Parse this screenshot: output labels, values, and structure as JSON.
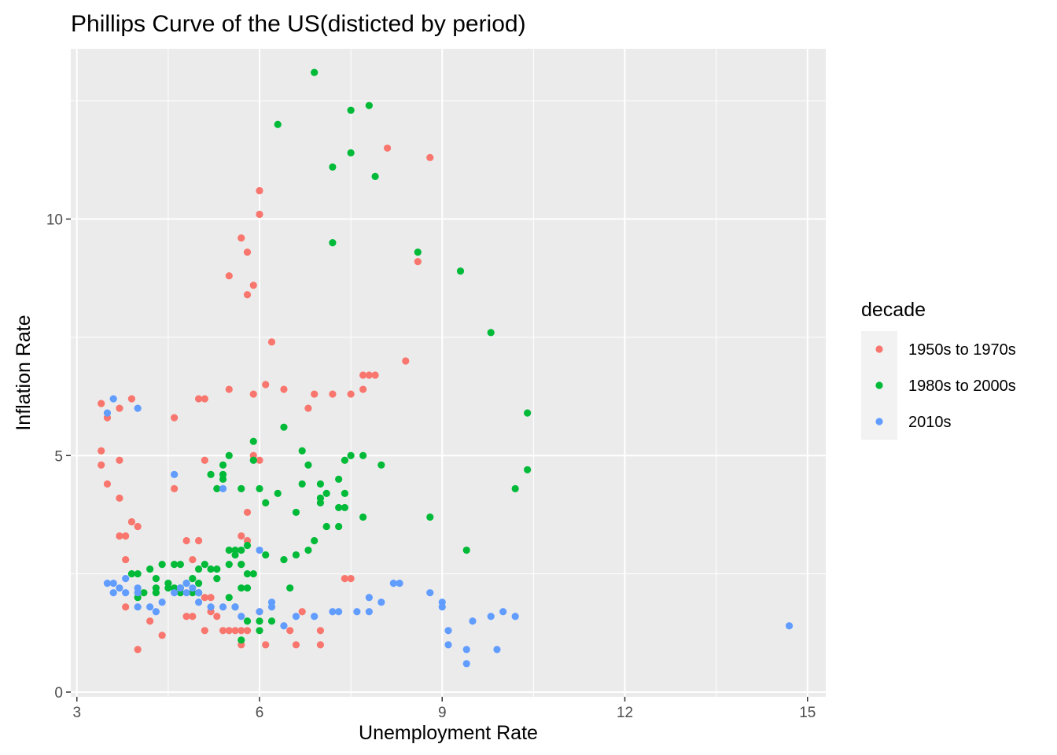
{
  "chart_data": {
    "type": "scatter",
    "title": "Phillips Curve of the US(disticted by period)",
    "xlabel": "Unemployment Rate",
    "ylabel": "Inflation Rate",
    "xlim": [
      2.9,
      15.3
    ],
    "ylim": [
      -0.1,
      13.6
    ],
    "x_ticks": [
      3,
      6,
      9,
      12,
      15
    ],
    "x_tick_labels": [
      "3",
      "6",
      "9",
      "12",
      "15"
    ],
    "y_ticks": [
      0,
      5,
      10
    ],
    "y_tick_labels": [
      "0",
      "5",
      "10"
    ],
    "grid": true,
    "legend": {
      "title": "decade",
      "position": "right"
    },
    "series": [
      {
        "name": "1950s to 1970s",
        "color": "#F8766D",
        "points": [
          [
            3.4,
            6.1
          ],
          [
            3.5,
            5.8
          ],
          [
            3.7,
            6.0
          ],
          [
            3.4,
            5.1
          ],
          [
            3.4,
            4.8
          ],
          [
            3.5,
            4.4
          ],
          [
            3.7,
            4.9
          ],
          [
            3.7,
            4.1
          ],
          [
            3.7,
            3.3
          ],
          [
            3.8,
            3.3
          ],
          [
            3.9,
            3.6
          ],
          [
            4.0,
            3.5
          ],
          [
            3.8,
            2.8
          ],
          [
            3.8,
            1.8
          ],
          [
            4.0,
            0.9
          ],
          [
            4.2,
            1.5
          ],
          [
            4.4,
            1.2
          ],
          [
            3.9,
            6.2
          ],
          [
            4.6,
            5.8
          ],
          [
            4.6,
            4.3
          ],
          [
            4.8,
            3.2
          ],
          [
            5.0,
            3.2
          ],
          [
            4.9,
            2.8
          ],
          [
            4.8,
            1.6
          ],
          [
            4.9,
            1.6
          ],
          [
            5.0,
            6.2
          ],
          [
            5.1,
            6.2
          ],
          [
            5.1,
            4.9
          ],
          [
            5.1,
            2.0
          ],
          [
            5.2,
            2.0
          ],
          [
            5.1,
            1.3
          ],
          [
            5.2,
            1.7
          ],
          [
            5.3,
            1.6
          ],
          [
            5.4,
            1.3
          ],
          [
            5.5,
            1.3
          ],
          [
            5.6,
            1.3
          ],
          [
            5.7,
            1.3
          ],
          [
            5.8,
            1.3
          ],
          [
            5.7,
            1.0
          ],
          [
            5.5,
            6.4
          ],
          [
            5.5,
            8.8
          ],
          [
            5.7,
            9.6
          ],
          [
            5.8,
            9.3
          ],
          [
            5.8,
            8.4
          ],
          [
            5.9,
            8.6
          ],
          [
            6.0,
            10.1
          ],
          [
            6.0,
            10.6
          ],
          [
            5.9,
            6.3
          ],
          [
            6.1,
            6.5
          ],
          [
            6.2,
            7.4
          ],
          [
            5.9,
            5.0
          ],
          [
            6.0,
            4.9
          ],
          [
            5.8,
            3.8
          ],
          [
            5.7,
            3.3
          ],
          [
            5.8,
            3.2
          ],
          [
            5.7,
            2.7
          ],
          [
            6.0,
            1.7
          ],
          [
            6.1,
            1.0
          ],
          [
            6.4,
            6.4
          ],
          [
            6.5,
            1.3
          ],
          [
            6.6,
            1.0
          ],
          [
            6.7,
            1.7
          ],
          [
            6.8,
            6.0
          ],
          [
            6.9,
            6.3
          ],
          [
            7.0,
            1.3
          ],
          [
            7.0,
            1.0
          ],
          [
            7.2,
            6.3
          ],
          [
            7.4,
            2.4
          ],
          [
            7.5,
            2.4
          ],
          [
            7.5,
            6.3
          ],
          [
            7.7,
            6.4
          ],
          [
            7.7,
            6.7
          ],
          [
            7.8,
            6.7
          ],
          [
            7.9,
            6.7
          ],
          [
            8.1,
            11.5
          ],
          [
            8.4,
            7.0
          ],
          [
            8.6,
            9.1
          ],
          [
            8.8,
            11.3
          ]
        ]
      },
      {
        "name": "1980s to 2000s",
        "color": "#00BA38",
        "points": [
          [
            3.9,
            2.5
          ],
          [
            4.0,
            2.5
          ],
          [
            4.0,
            2.0
          ],
          [
            4.1,
            2.1
          ],
          [
            4.2,
            2.6
          ],
          [
            4.3,
            2.4
          ],
          [
            4.3,
            2.1
          ],
          [
            4.3,
            2.2
          ],
          [
            4.4,
            2.7
          ],
          [
            4.5,
            2.3
          ],
          [
            4.5,
            2.2
          ],
          [
            4.6,
            2.2
          ],
          [
            4.6,
            2.7
          ],
          [
            4.7,
            2.7
          ],
          [
            4.7,
            2.2
          ],
          [
            4.7,
            2.1
          ],
          [
            4.8,
            2.3
          ],
          [
            4.9,
            2.4
          ],
          [
            4.9,
            2.1
          ],
          [
            5.0,
            2.6
          ],
          [
            5.0,
            2.3
          ],
          [
            5.0,
            2.1
          ],
          [
            5.1,
            2.7
          ],
          [
            5.2,
            2.6
          ],
          [
            5.3,
            2.6
          ],
          [
            5.3,
            2.4
          ],
          [
            5.2,
            4.6
          ],
          [
            5.3,
            4.3
          ],
          [
            5.4,
            4.8
          ],
          [
            5.4,
            4.6
          ],
          [
            5.4,
            4.5
          ],
          [
            5.5,
            5.0
          ],
          [
            5.5,
            3.0
          ],
          [
            5.5,
            2.7
          ],
          [
            5.5,
            2.0
          ],
          [
            5.6,
            3.0
          ],
          [
            5.6,
            2.9
          ],
          [
            5.6,
            1.8
          ],
          [
            5.7,
            3.0
          ],
          [
            5.7,
            2.7
          ],
          [
            5.7,
            2.2
          ],
          [
            5.7,
            4.3
          ],
          [
            5.7,
            1.1
          ],
          [
            5.8,
            3.1
          ],
          [
            5.8,
            2.5
          ],
          [
            5.8,
            2.2
          ],
          [
            5.8,
            1.5
          ],
          [
            5.9,
            2.5
          ],
          [
            5.9,
            5.3
          ],
          [
            5.9,
            4.9
          ],
          [
            6.0,
            4.3
          ],
          [
            6.0,
            1.3
          ],
          [
            6.0,
            1.5
          ],
          [
            6.1,
            4.0
          ],
          [
            6.1,
            2.9
          ],
          [
            6.2,
            1.5
          ],
          [
            6.3,
            12.0
          ],
          [
            6.3,
            4.2
          ],
          [
            6.4,
            5.6
          ],
          [
            6.4,
            2.8
          ],
          [
            6.5,
            2.2
          ],
          [
            6.6,
            3.8
          ],
          [
            6.6,
            2.9
          ],
          [
            6.7,
            5.1
          ],
          [
            6.7,
            4.4
          ],
          [
            6.8,
            4.8
          ],
          [
            6.8,
            3.0
          ],
          [
            6.9,
            3.2
          ],
          [
            7.0,
            4.4
          ],
          [
            7.0,
            4.1
          ],
          [
            7.0,
            4.0
          ],
          [
            7.1,
            4.2
          ],
          [
            7.1,
            3.5
          ],
          [
            7.2,
            11.1
          ],
          [
            7.2,
            9.5
          ],
          [
            7.3,
            4.5
          ],
          [
            7.3,
            3.9
          ],
          [
            7.3,
            3.5
          ],
          [
            7.4,
            4.9
          ],
          [
            7.4,
            4.2
          ],
          [
            7.4,
            3.9
          ],
          [
            7.5,
            11.4
          ],
          [
            7.5,
            12.3
          ],
          [
            7.5,
            5.0
          ],
          [
            7.7,
            5.0
          ],
          [
            7.7,
            3.7
          ],
          [
            7.8,
            12.4
          ],
          [
            7.9,
            10.9
          ],
          [
            8.0,
            4.8
          ],
          [
            8.6,
            9.3
          ],
          [
            8.8,
            3.7
          ],
          [
            9.3,
            8.9
          ],
          [
            9.4,
            3.0
          ],
          [
            9.8,
            7.6
          ],
          [
            10.2,
            4.3
          ],
          [
            10.4,
            5.9
          ],
          [
            10.4,
            4.7
          ],
          [
            6.9,
            13.1
          ]
        ]
      },
      {
        "name": "2010s",
        "color": "#619CFF",
        "points": [
          [
            3.5,
            5.9
          ],
          [
            3.6,
            6.2
          ],
          [
            4.0,
            6.0
          ],
          [
            3.5,
            2.3
          ],
          [
            3.6,
            2.3
          ],
          [
            3.6,
            2.1
          ],
          [
            3.7,
            2.2
          ],
          [
            3.8,
            2.4
          ],
          [
            3.8,
            2.1
          ],
          [
            4.0,
            2.2
          ],
          [
            4.0,
            2.1
          ],
          [
            4.0,
            1.8
          ],
          [
            4.2,
            1.8
          ],
          [
            4.3,
            1.7
          ],
          [
            4.4,
            1.9
          ],
          [
            4.6,
            4.6
          ],
          [
            4.6,
            2.1
          ],
          [
            4.7,
            2.2
          ],
          [
            4.8,
            2.3
          ],
          [
            4.8,
            2.1
          ],
          [
            4.9,
            2.2
          ],
          [
            5.0,
            2.1
          ],
          [
            5.0,
            1.9
          ],
          [
            5.2,
            1.8
          ],
          [
            5.4,
            1.8
          ],
          [
            5.4,
            4.3
          ],
          [
            5.6,
            1.8
          ],
          [
            5.7,
            1.6
          ],
          [
            6.0,
            1.7
          ],
          [
            6.0,
            3.0
          ],
          [
            6.2,
            1.9
          ],
          [
            6.2,
            1.8
          ],
          [
            6.4,
            1.4
          ],
          [
            6.6,
            1.6
          ],
          [
            6.9,
            1.6
          ],
          [
            7.2,
            1.7
          ],
          [
            7.3,
            1.7
          ],
          [
            7.6,
            1.7
          ],
          [
            7.8,
            2.0
          ],
          [
            7.8,
            1.7
          ],
          [
            8.0,
            1.9
          ],
          [
            8.2,
            2.3
          ],
          [
            8.3,
            2.3
          ],
          [
            8.8,
            2.1
          ],
          [
            9.0,
            1.9
          ],
          [
            9.0,
            1.8
          ],
          [
            9.1,
            1.3
          ],
          [
            9.1,
            1.0
          ],
          [
            9.4,
            0.9
          ],
          [
            9.4,
            0.6
          ],
          [
            9.5,
            1.5
          ],
          [
            9.8,
            1.6
          ],
          [
            9.9,
            0.9
          ],
          [
            10.0,
            1.7
          ],
          [
            10.2,
            1.6
          ],
          [
            14.7,
            1.4
          ]
        ]
      }
    ]
  }
}
